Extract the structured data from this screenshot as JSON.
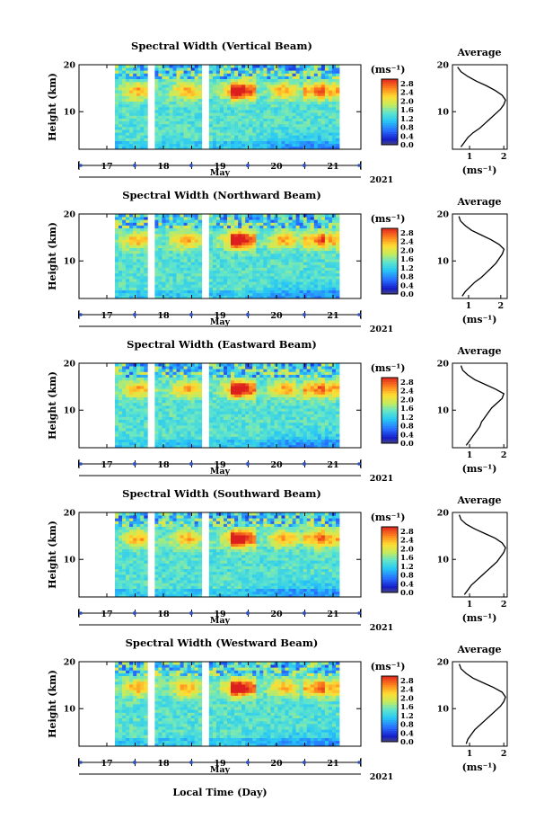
{
  "chart_data": [
    {
      "type": "heatmap",
      "title": "Spectral Width (Vertical Beam)",
      "ylabel": "Height (km)",
      "ylim": [
        2,
        20
      ],
      "yticks": [
        10,
        20
      ],
      "x_days": [
        "17",
        "18",
        "19",
        "20",
        "21"
      ],
      "x_month": "May",
      "year": "2021",
      "colorbar": {
        "unit": "(ms⁻¹)",
        "ticks": [
          "2.8",
          "2.4",
          "2.0",
          "1.6",
          "1.2",
          "0.8",
          "0.4",
          "0.0"
        ],
        "range": [
          0,
          3.0
        ]
      },
      "average": {
        "title": "Average",
        "xlabel": "(ms⁻¹)",
        "xticks": [
          1,
          2
        ],
        "xlim": [
          0.5,
          2.1
        ],
        "height": [
          2.5,
          3.5,
          4.5,
          5.5,
          6.5,
          7.5,
          8.5,
          9.5,
          10.5,
          11.5,
          12.5,
          13.5,
          14.5,
          15.5,
          16.5,
          17.5,
          18.5,
          19.5
        ],
        "values": [
          0.75,
          0.85,
          0.95,
          1.1,
          1.3,
          1.45,
          1.6,
          1.75,
          1.9,
          2.0,
          2.05,
          1.95,
          1.75,
          1.5,
          1.2,
          0.95,
          0.75,
          0.65
        ]
      }
    },
    {
      "type": "heatmap",
      "title": "Spectral Width (Northward Beam)",
      "ylabel": "Height (km)",
      "ylim": [
        2,
        20
      ],
      "yticks": [
        10,
        20
      ],
      "x_days": [
        "17",
        "18",
        "19",
        "20",
        "21"
      ],
      "x_month": "May",
      "year": "2021",
      "colorbar": {
        "unit": "(ms⁻¹)",
        "ticks": [
          "2.8",
          "2.4",
          "2.0",
          "1.6",
          "1.2",
          "0.8",
          "0.4",
          "0.0"
        ],
        "range": [
          0,
          3.0
        ]
      },
      "average": {
        "title": "Average",
        "xlabel": "(ms⁻¹)",
        "xticks": [
          1,
          2
        ],
        "xlim": [
          0.5,
          2.2
        ],
        "height": [
          2.5,
          3.5,
          4.5,
          5.5,
          6.5,
          7.5,
          8.5,
          9.5,
          10.5,
          11.5,
          12.5,
          13.5,
          14.5,
          15.5,
          16.5,
          17.5,
          18.5,
          19.5
        ],
        "values": [
          0.8,
          0.9,
          1.05,
          1.2,
          1.4,
          1.55,
          1.7,
          1.85,
          1.95,
          2.05,
          2.1,
          1.95,
          1.7,
          1.4,
          1.1,
          0.9,
          0.75,
          0.7
        ]
      }
    },
    {
      "type": "heatmap",
      "title": "Spectral Width (Eastward Beam)",
      "ylabel": "Height (km)",
      "ylim": [
        2,
        20
      ],
      "yticks": [
        10,
        20
      ],
      "x_days": [
        "17",
        "18",
        "19",
        "20",
        "21"
      ],
      "x_month": "May",
      "year": "2021",
      "colorbar": {
        "unit": "(ms⁻¹)",
        "ticks": [
          "2.8",
          "2.4",
          "2.0",
          "1.6",
          "1.2",
          "0.8",
          "0.4",
          "0.0"
        ],
        "range": [
          0,
          3.0
        ]
      },
      "average": {
        "title": "Average",
        "xlabel": "(ms⁻¹)",
        "xticks": [
          1,
          2
        ],
        "xlim": [
          0.5,
          2.1
        ],
        "height": [
          2.5,
          3.5,
          4.5,
          5.5,
          6.5,
          7.5,
          8.5,
          9.5,
          10.5,
          11.5,
          12.5,
          13.5,
          14.5,
          15.5,
          16.5,
          17.5,
          18.5,
          19.5
        ],
        "values": [
          0.9,
          1.0,
          1.1,
          1.2,
          1.3,
          1.35,
          1.45,
          1.55,
          1.65,
          1.8,
          1.95,
          2.0,
          1.75,
          1.45,
          1.15,
          0.95,
          0.8,
          0.75
        ]
      }
    },
    {
      "type": "heatmap",
      "title": "Spectral Width (Southward Beam)",
      "ylabel": "Height (km)",
      "ylim": [
        2,
        20
      ],
      "yticks": [
        10,
        20
      ],
      "x_days": [
        "17",
        "18",
        "19",
        "20",
        "21"
      ],
      "x_month": "May",
      "year": "2021",
      "colorbar": {
        "unit": "(ms⁻¹)",
        "ticks": [
          "2.8",
          "2.4",
          "2.0",
          "1.6",
          "1.2",
          "0.8",
          "0.4",
          "0.0"
        ],
        "range": [
          0,
          3.0
        ]
      },
      "average": {
        "title": "Average",
        "xlabel": "(ms⁻¹)",
        "xticks": [
          1,
          2
        ],
        "xlim": [
          0.5,
          2.1
        ],
        "height": [
          2.5,
          3.5,
          4.5,
          5.5,
          6.5,
          7.5,
          8.5,
          9.5,
          10.5,
          11.5,
          12.5,
          13.5,
          14.5,
          15.5,
          16.5,
          17.5,
          18.5,
          19.5
        ],
        "values": [
          0.85,
          0.95,
          1.05,
          1.2,
          1.35,
          1.5,
          1.65,
          1.8,
          1.9,
          2.0,
          2.05,
          1.95,
          1.75,
          1.45,
          1.15,
          0.9,
          0.75,
          0.7
        ]
      }
    },
    {
      "type": "heatmap",
      "title": "Spectral Width (Westward Beam)",
      "ylabel": "Height (km)",
      "ylim": [
        2,
        20
      ],
      "yticks": [
        10,
        20
      ],
      "x_days": [
        "17",
        "18",
        "19",
        "20",
        "21"
      ],
      "x_month": "May",
      "year": "2021",
      "xlabel": "Local Time (Day)",
      "colorbar": {
        "unit": "(ms⁻¹)",
        "ticks": [
          "2.8",
          "2.4",
          "2.0",
          "1.6",
          "1.2",
          "0.8",
          "0.4",
          "0.0"
        ],
        "range": [
          0,
          3.0
        ]
      },
      "average": {
        "title": "Average",
        "xlabel": "(ms⁻¹)",
        "xticks": [
          1,
          2
        ],
        "xlim": [
          0.5,
          2.1
        ],
        "height": [
          2.5,
          3.5,
          4.5,
          5.5,
          6.5,
          7.5,
          8.5,
          9.5,
          10.5,
          11.5,
          12.5,
          13.5,
          14.5,
          15.5,
          16.5,
          17.5,
          18.5,
          19.5
        ],
        "values": [
          0.9,
          0.95,
          1.05,
          1.15,
          1.3,
          1.45,
          1.6,
          1.75,
          1.9,
          2.0,
          2.05,
          1.95,
          1.7,
          1.4,
          1.1,
          0.9,
          0.75,
          0.7
        ]
      }
    }
  ]
}
